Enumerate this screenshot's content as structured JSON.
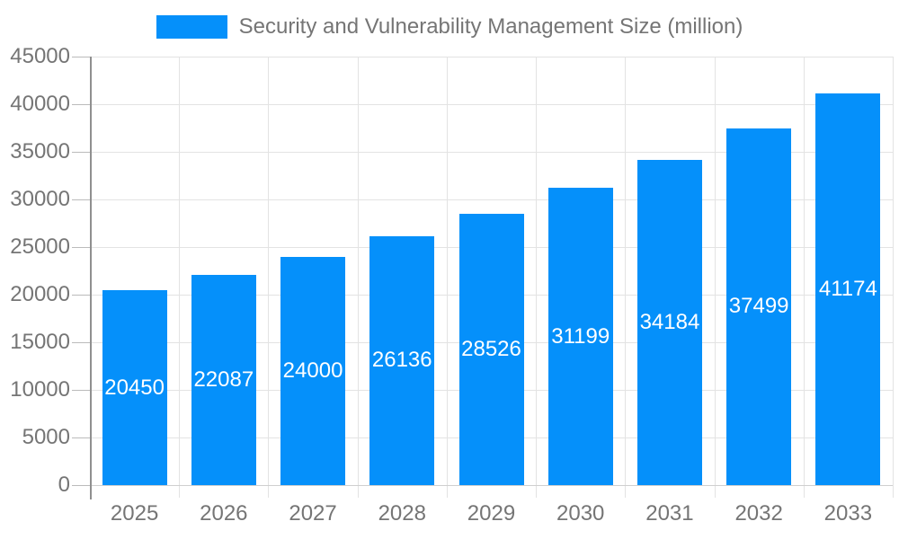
{
  "legend": {
    "label": "Security and Vulnerability Management Size (million)"
  },
  "chart_data": {
    "type": "bar",
    "title": "Security and Vulnerability Management Size (million)",
    "categories": [
      "2025",
      "2026",
      "2027",
      "2028",
      "2029",
      "2030",
      "2031",
      "2032",
      "2033"
    ],
    "values": [
      20450,
      22087,
      24000,
      26136,
      28526,
      31199,
      34184,
      37499,
      41174
    ],
    "series": [
      {
        "name": "Security and Vulnerability Management Size (million)",
        "values": [
          20450,
          22087,
          24000,
          26136,
          28526,
          31199,
          34184,
          37499,
          41174
        ]
      }
    ],
    "xlabel": "",
    "ylabel": "",
    "ylim": [
      0,
      45000
    ],
    "ytick_step": 5000,
    "ytick_labels": [
      "0",
      "5000",
      "10000",
      "15000",
      "20000",
      "25000",
      "30000",
      "35000",
      "40000",
      "45000"
    ],
    "grid": true,
    "legend_position": "top-center",
    "data_labels": "white, centered inside bars"
  },
  "colors": {
    "bar": "#0590FA",
    "axis_text": "#757575",
    "grid": "#e3e3e3",
    "baseline": "#cfcfcf",
    "axis_line": "#8f8f8f",
    "tick": "#bbbbbb",
    "background": "#ffffff",
    "data_label": "#ffffff"
  }
}
